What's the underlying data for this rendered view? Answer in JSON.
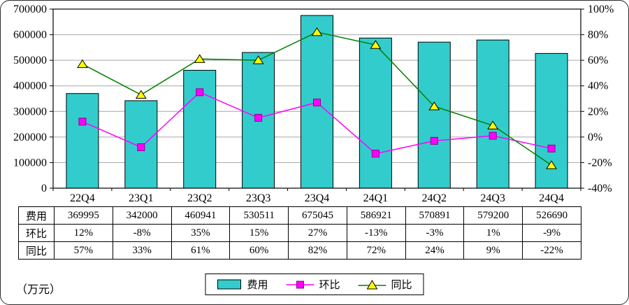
{
  "chart_data": {
    "type": "combo",
    "title": "",
    "unit_label": "（万元）",
    "categories": [
      "22Q4",
      "23Q1",
      "23Q2",
      "23Q3",
      "23Q4",
      "24Q1",
      "24Q2",
      "24Q3",
      "24Q4"
    ],
    "series": [
      {
        "name": "费用",
        "type": "bar",
        "axis": "left",
        "color": "#33CCCC",
        "values": [
          369995,
          342000,
          460941,
          530511,
          675045,
          586921,
          570891,
          579200,
          526690
        ]
      },
      {
        "name": "环比",
        "type": "line",
        "axis": "right",
        "color": "#FF00FF",
        "marker": "square",
        "marker_color": "#FF00FF",
        "values_pct": [
          12,
          -8,
          35,
          15,
          27,
          -13,
          -3,
          1,
          -9
        ],
        "labels": [
          "12%",
          "-8%",
          "35%",
          "15%",
          "27%",
          "-13%",
          "-3%",
          "1%",
          "-9%"
        ]
      },
      {
        "name": "同比",
        "type": "line",
        "axis": "right",
        "color": "#008000",
        "marker": "triangle",
        "marker_color": "#FFFF00",
        "values_pct": [
          57,
          33,
          61,
          60,
          82,
          72,
          24,
          9,
          -22
        ],
        "labels": [
          "57%",
          "33%",
          "61%",
          "60%",
          "82%",
          "72%",
          "24%",
          "9%",
          "-22%"
        ]
      }
    ],
    "left_axis": {
      "min": 0,
      "max": 700000,
      "step": 100000,
      "tick_labels": [
        "0",
        "100000",
        "200000",
        "300000",
        "400000",
        "500000",
        "600000",
        "700000"
      ]
    },
    "right_axis": {
      "min": -40,
      "max": 100,
      "step": 20,
      "tick_labels": [
        "-40%",
        "-20%",
        "0%",
        "20%",
        "40%",
        "60%",
        "80%",
        "100%"
      ]
    },
    "grid": true,
    "legend": [
      "费用",
      "环比",
      "同比"
    ],
    "legend_position": "bottom"
  },
  "table": {
    "row_headers": [
      "费用",
      "环比",
      "同比"
    ],
    "rows": [
      [
        "369995",
        "342000",
        "460941",
        "530511",
        "675045",
        "586921",
        "570891",
        "579200",
        "526690"
      ],
      [
        "12%",
        "-8%",
        "35%",
        "15%",
        "27%",
        "-13%",
        "-3%",
        "1%",
        "-9%"
      ],
      [
        "57%",
        "33%",
        "61%",
        "60%",
        "82%",
        "72%",
        "24%",
        "9%",
        "-22%"
      ]
    ]
  }
}
